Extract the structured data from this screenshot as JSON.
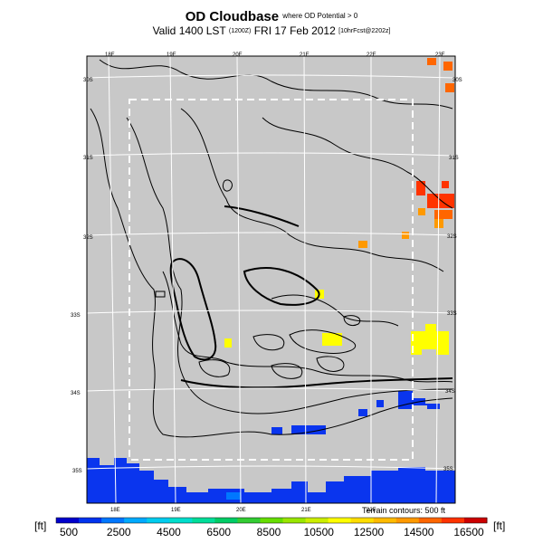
{
  "title": {
    "main": "OD Cloudbase",
    "qualifier": "where OD Potential > 0",
    "valid_prefix": "Valid 1400 LST",
    "valid_code": "(1200Z)",
    "valid_date": "FRI 17 Feb 2012",
    "run_info": "[10hrFcst@2202z]"
  },
  "map": {
    "background_color": "#c8c8c8",
    "terrain_note": "Terrain contours: 500 ft",
    "lon_labels_top": [
      "18E",
      "19E",
      "20E",
      "21E",
      "22E",
      "23E"
    ],
    "lon_labels_bottom": [
      "18E",
      "19E",
      "20E",
      "21E",
      "22E"
    ],
    "lat_labels_left": [
      "30S",
      "31S",
      "32S",
      "33S",
      "34S",
      "35S"
    ],
    "lat_labels_right": [
      "30S",
      "31S",
      "32S",
      "33S",
      "34S",
      "35S"
    ]
  },
  "colorbar": {
    "unit_left": "[ft]",
    "unit_right": "[ft]",
    "tick_labels": [
      "500",
      "2500",
      "4500",
      "6500",
      "8500",
      "10500",
      "12500",
      "14500",
      "16500"
    ],
    "colors": [
      "#0000cc",
      "#0033ee",
      "#0077ff",
      "#00aaff",
      "#00ccee",
      "#00ddcc",
      "#00dd99",
      "#00cc66",
      "#33cc33",
      "#66dd00",
      "#99e600",
      "#ccee00",
      "#ffff00",
      "#ffdd00",
      "#ffbb00",
      "#ff9900",
      "#ff6600",
      "#ff3300",
      "#cc0000"
    ]
  }
}
